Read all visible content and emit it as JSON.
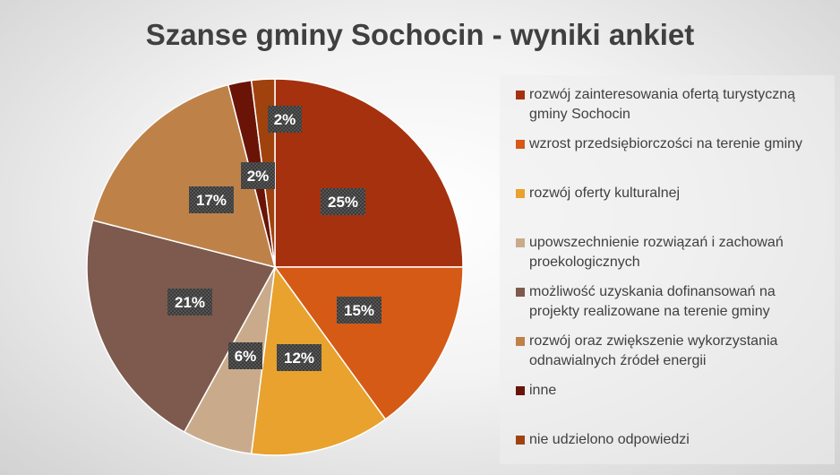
{
  "title": "Szanse gminy Sochocin - wyniki ankiet",
  "chart_data": {
    "type": "pie",
    "title": "Szanse gminy Sochocin - wyniki ankiet",
    "legend_position": "right",
    "data_label_format": "percent",
    "slices": [
      {
        "label": "rozwój zainteresowania ofertą turystyczną gminy Sochocin",
        "value": 25,
        "color": "#A5310E"
      },
      {
        "label": "wzrost przedsiębiorczości na terenie gminy",
        "value": 15,
        "color": "#D55A16"
      },
      {
        "label": "rozwój oferty kulturalnej",
        "value": 12,
        "color": "#E8A22D"
      },
      {
        "label": "upowszechnienie rozwiązań i zachowań proekologicznych",
        "value": 6,
        "color": "#C9AB8C"
      },
      {
        "label": "możliwość uzyskania dofinansowań na projekty realizowane na terenie gminy",
        "value": 21,
        "color": "#7D5A4D"
      },
      {
        "label": "rozwój oraz zwiększenie wykorzystania odnawialnych źródeł energii",
        "value": 17,
        "color": "#BE8249"
      },
      {
        "label": "inne",
        "value": 2,
        "color": "#6A1408"
      },
      {
        "label": "nie udzielono odpowiedzi",
        "value": 2,
        "color": "#A0420E"
      }
    ]
  }
}
